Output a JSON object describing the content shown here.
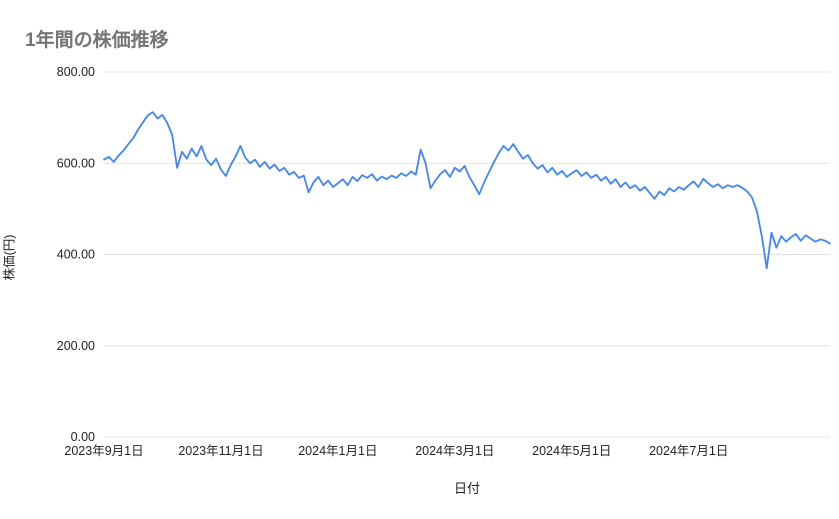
{
  "chart": {
    "title": "1年間の株価推移",
    "x_axis_title": "日付",
    "y_axis_title": "株価(円)"
  },
  "chart_data": {
    "type": "line",
    "title": "1年間の株価推移",
    "xlabel": "日付",
    "ylabel": "株価(円)",
    "ylim": [
      0,
      800
    ],
    "y_ticks": [
      0,
      200,
      400,
      600,
      800
    ],
    "y_tick_labels": [
      "0.00",
      "200.00",
      "400.00",
      "600.00",
      "800.00"
    ],
    "x_tick_labels": [
      "2023年9月1日",
      "2023年11月1日",
      "2024年1月1日",
      "2024年3月1日",
      "2024年5月1日",
      "2024年7月1日"
    ],
    "x_tick_positions": [
      0,
      0.1611,
      0.3221,
      0.4832,
      0.6443,
      0.8054
    ],
    "legend": "none",
    "grid": "horizontal",
    "line_color": "#4285f4",
    "grid_color": "#e3e3e3",
    "tick_label_color": "#222222",
    "title_color": "#757575",
    "series": [
      {
        "name": "株価",
        "values": [
          608,
          614,
          603,
          617,
          628,
          642,
          655,
          674,
          690,
          705,
          712,
          698,
          706,
          688,
          662,
          590,
          625,
          610,
          632,
          615,
          638,
          608,
          596,
          610,
          586,
          572,
          596,
          615,
          638,
          612,
          600,
          608,
          592,
          603,
          588,
          597,
          583,
          590,
          575,
          581,
          568,
          573,
          536,
          558,
          570,
          552,
          562,
          548,
          556,
          565,
          552,
          570,
          561,
          574,
          568,
          576,
          562,
          571,
          565,
          573,
          568,
          578,
          572,
          582,
          575,
          630,
          600,
          545,
          562,
          576,
          585,
          570,
          590,
          582,
          594,
          570,
          552,
          532,
          558,
          580,
          602,
          622,
          638,
          628,
          642,
          625,
          610,
          618,
          600,
          588,
          596,
          580,
          590,
          575,
          583,
          570,
          578,
          585,
          572,
          580,
          568,
          575,
          562,
          570,
          555,
          565,
          548,
          558,
          545,
          552,
          540,
          548,
          535,
          522,
          538,
          530,
          545,
          538,
          548,
          542,
          552,
          560,
          548,
          566,
          556,
          548,
          554,
          545,
          552,
          548,
          552,
          546,
          538,
          525,
          495,
          440,
          370,
          448,
          415,
          440,
          428,
          438,
          445,
          430,
          442,
          435,
          428,
          433,
          430,
          424
        ]
      }
    ]
  }
}
